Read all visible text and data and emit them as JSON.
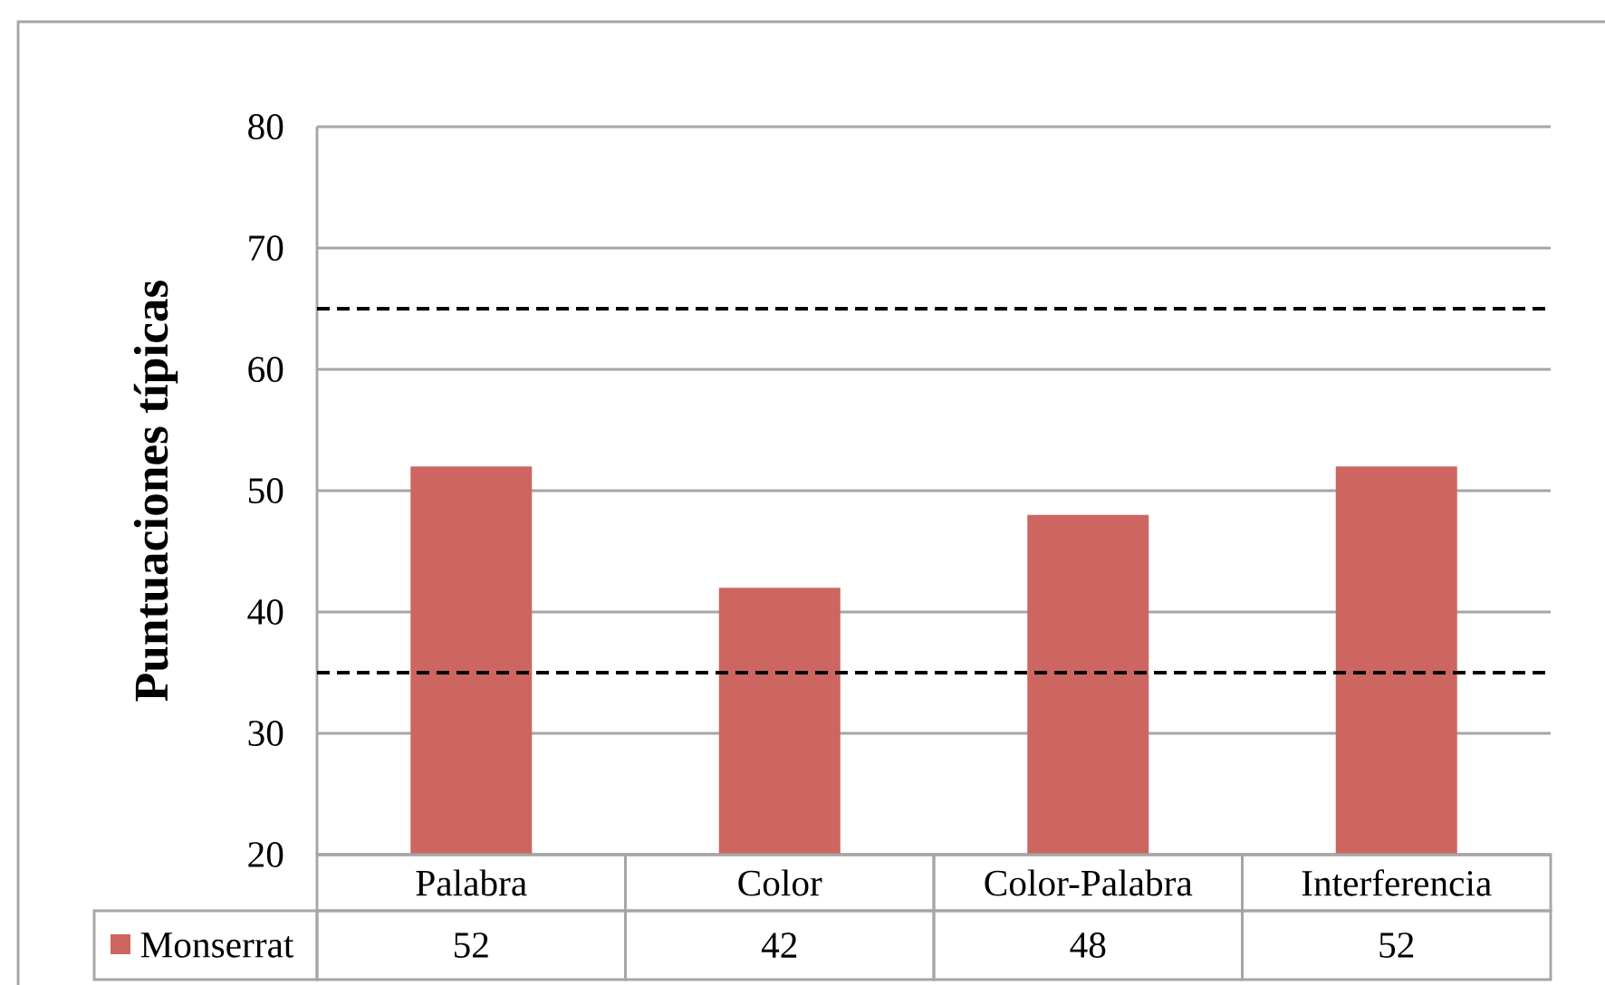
{
  "chart_data": {
    "type": "bar",
    "ylabel": "Puntuaciones típicas",
    "categories": [
      "Palabra",
      "Color",
      "Color-Palabra",
      "Interferencia"
    ],
    "series": [
      {
        "name": "Monserrat",
        "color": "#cd6660",
        "values": [
          52,
          42,
          48,
          52
        ]
      }
    ],
    "ylim": [
      20,
      80
    ],
    "yticks": [
      20,
      30,
      40,
      50,
      60,
      70,
      80
    ],
    "grid": "y",
    "data_labels": true,
    "legend": "bottom",
    "ref_lines": [
      {
        "axis": "y",
        "value": 35,
        "color": "#000000",
        "line_style": "dashed"
      },
      {
        "axis": "y",
        "value": 65,
        "color": "#000000",
        "line_style": "dashed"
      }
    ]
  }
}
